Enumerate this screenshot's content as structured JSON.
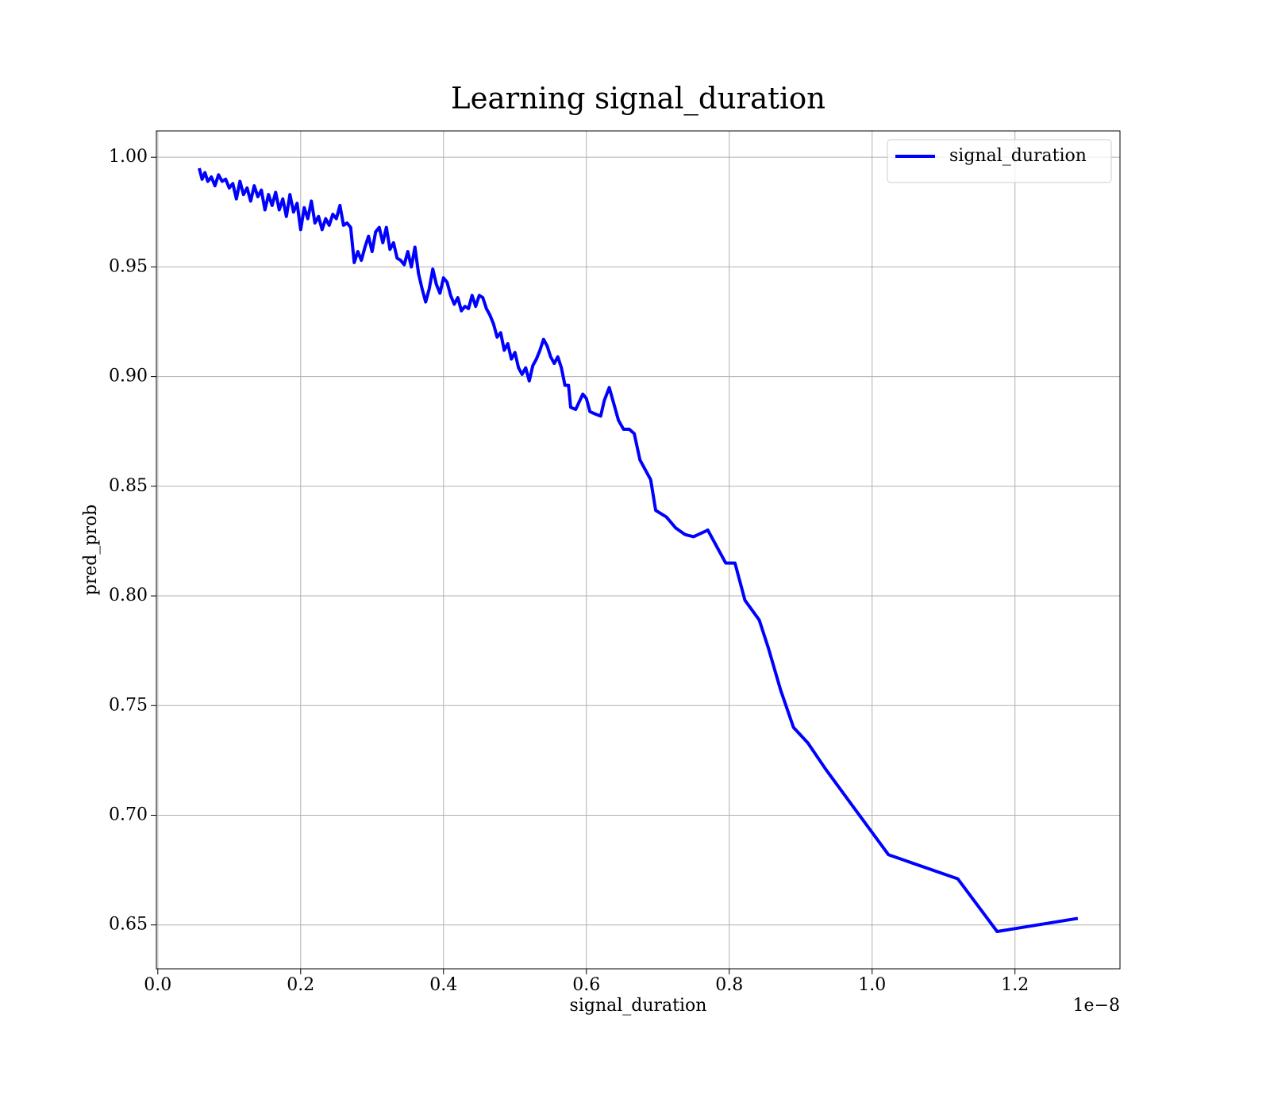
{
  "chart_data": {
    "type": "line",
    "title": "Learning signal_duration",
    "x_label": "signal_duration",
    "y_label": "pred_prob",
    "x_offset_label": "1e−8",
    "legend": "upper right",
    "grid": true,
    "xlim": [
      -0.002,
      1.347
    ],
    "ylim": [
      0.63,
      1.012
    ],
    "xticks": [
      {
        "value": 0,
        "label": "0.0"
      },
      0.2,
      0.4,
      0.6,
      0.8,
      {
        "value": 1,
        "label": "1.0"
      },
      1.2
    ],
    "yticks": [
      0.65,
      {
        "value": 0.7,
        "label": "0.70"
      },
      0.75,
      {
        "value": 0.8,
        "label": "0.80"
      },
      0.85,
      {
        "value": 0.9,
        "label": "0.90"
      },
      0.95,
      {
        "value": 1,
        "label": "1.00"
      }
    ],
    "x": [
      0.058,
      0.062,
      0.066,
      0.07,
      0.075,
      0.08,
      0.085,
      0.09,
      0.095,
      0.1,
      0.105,
      0.11,
      0.115,
      0.12,
      0.125,
      0.13,
      0.135,
      0.14,
      0.145,
      0.15,
      0.155,
      0.16,
      0.165,
      0.17,
      0.175,
      0.18,
      0.185,
      0.19,
      0.195,
      0.2,
      0.205,
      0.21,
      0.215,
      0.22,
      0.225,
      0.23,
      0.235,
      0.24,
      0.245,
      0.25,
      0.255,
      0.26,
      0.265,
      0.27,
      0.275,
      0.28,
      0.285,
      0.29,
      0.295,
      0.3,
      0.305,
      0.31,
      0.315,
      0.32,
      0.325,
      0.33,
      0.335,
      0.34,
      0.345,
      0.35,
      0.355,
      0.36,
      0.365,
      0.37,
      0.375,
      0.38,
      0.385,
      0.39,
      0.395,
      0.4,
      0.405,
      0.41,
      0.415,
      0.42,
      0.425,
      0.43,
      0.435,
      0.44,
      0.445,
      0.45,
      0.455,
      0.46,
      0.465,
      0.47,
      0.475,
      0.48,
      0.485,
      0.49,
      0.495,
      0.5,
      0.505,
      0.51,
      0.515,
      0.52,
      0.525,
      0.53,
      0.535,
      0.54,
      0.545,
      0.55,
      0.555,
      0.56,
      0.565,
      0.57,
      0.575,
      0.578,
      0.585,
      0.595,
      0.6,
      0.605,
      0.612,
      0.62,
      0.625,
      0.632,
      0.645,
      0.652,
      0.66,
      0.667,
      0.675,
      0.69,
      0.697,
      0.712,
      0.725,
      0.738,
      0.75,
      0.77,
      0.795,
      0.808,
      0.822,
      0.842,
      0.855,
      0.872,
      0.89,
      0.91,
      0.935,
      0.98,
      1.023,
      1.12,
      1.175,
      1.288
    ],
    "series": [
      {
        "name": "signal_duration",
        "color": "#0000ff",
        "values": [
          0.995,
          0.99,
          0.993,
          0.989,
          0.991,
          0.987,
          0.992,
          0.989,
          0.99,
          0.986,
          0.988,
          0.981,
          0.989,
          0.983,
          0.986,
          0.98,
          0.987,
          0.982,
          0.985,
          0.976,
          0.983,
          0.978,
          0.984,
          0.976,
          0.981,
          0.973,
          0.983,
          0.975,
          0.979,
          0.967,
          0.977,
          0.972,
          0.98,
          0.97,
          0.973,
          0.967,
          0.972,
          0.969,
          0.974,
          0.972,
          0.978,
          0.969,
          0.97,
          0.968,
          0.952,
          0.957,
          0.953,
          0.959,
          0.964,
          0.957,
          0.966,
          0.968,
          0.961,
          0.968,
          0.958,
          0.961,
          0.954,
          0.953,
          0.951,
          0.957,
          0.95,
          0.959,
          0.947,
          0.94,
          0.934,
          0.94,
          0.949,
          0.942,
          0.938,
          0.945,
          0.943,
          0.937,
          0.933,
          0.936,
          0.93,
          0.932,
          0.931,
          0.937,
          0.932,
          0.937,
          0.936,
          0.931,
          0.928,
          0.924,
          0.918,
          0.92,
          0.912,
          0.915,
          0.908,
          0.911,
          0.904,
          0.901,
          0.904,
          0.898,
          0.905,
          0.908,
          0.912,
          0.917,
          0.914,
          0.909,
          0.906,
          0.909,
          0.904,
          0.896,
          0.896,
          0.886,
          0.885,
          0.892,
          0.89,
          0.884,
          0.883,
          0.882,
          0.889,
          0.895,
          0.88,
          0.876,
          0.876,
          0.874,
          0.862,
          0.853,
          0.839,
          0.836,
          0.831,
          0.828,
          0.827,
          0.83,
          0.815,
          0.815,
          0.798,
          0.789,
          0.776,
          0.757,
          0.74,
          0.733,
          0.721,
          0.701,
          0.682,
          0.671,
          0.647,
          0.653
        ]
      }
    ]
  }
}
